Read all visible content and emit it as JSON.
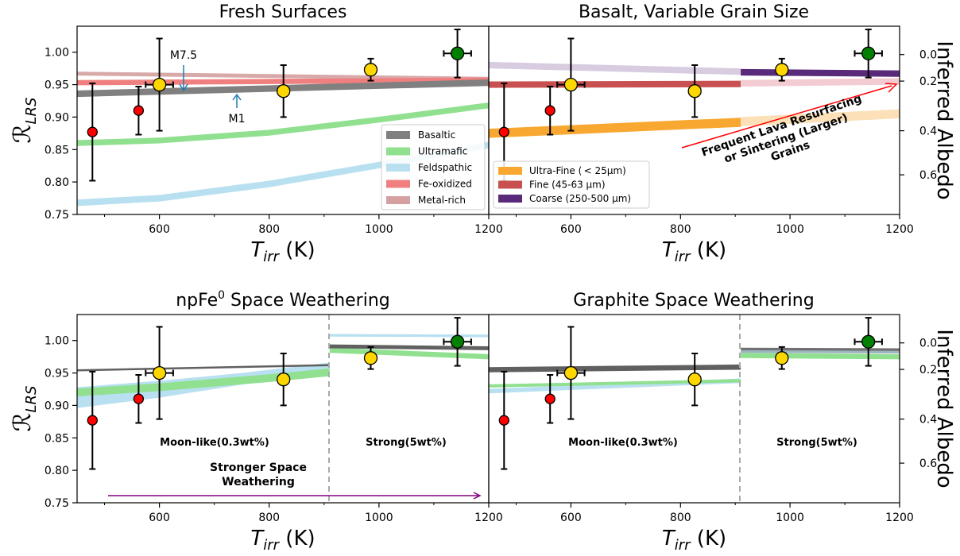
{
  "figure": {
    "xlabel_sym": "T",
    "xlabel_sub": "irr",
    "xlabel_unit": "(K)",
    "ylabel_sym": "ℛ",
    "ylabel_sub": "LRS",
    "right_ylabel": "Inferred Albedo",
    "xticks": [
      "600",
      "800",
      "1000",
      "1200"
    ],
    "yticks": [
      "0.75",
      "0.80",
      "0.85",
      "0.90",
      "0.95",
      "1.00"
    ],
    "right_ticks": [
      "0.0",
      "0.2",
      "0.4",
      "0.6"
    ]
  },
  "titles": {
    "p1": "Fresh Surfaces",
    "p2": "Basalt, Variable Grain Size",
    "p3_main": "npFe",
    "p3_sup": "0",
    "p3_rest": " Space Weathering",
    "p4": "Graphite Space Weathering"
  },
  "annotations": {
    "m75": "M7.5",
    "m1": "M1",
    "lava_l1": "Frequent Lava Resurfacing",
    "lava_l2": "or Sintering (Larger)",
    "lava_l3": "Grains",
    "moonlike": "Moon-like(0.3wt%)",
    "strong": "Strong(5wt%)",
    "stronger_l1": "Stronger Space",
    "stronger_l2": "Weathering"
  },
  "legend1": [
    {
      "label": "Basaltic",
      "color": "#808080"
    },
    {
      "label": "Ultramafic",
      "color": "#90e090"
    },
    {
      "label": "Feldspathic",
      "color": "#b8e0f0"
    },
    {
      "label": "Fe-oxidized",
      "color": "#f08080"
    },
    {
      "label": "Metal-rich",
      "color": "#d4a0a0"
    }
  ],
  "legend2": [
    {
      "label": "Ultra-Fine ( < 25μm)",
      "color": "#f8a830"
    },
    {
      "label": "Fine (45-63 μm)",
      "color": "#c85050"
    },
    {
      "label": "Coarse (250-500 μm)",
      "color": "#5a2a7a"
    }
  ],
  "chart_data": [
    {
      "type": "scatter",
      "title": "Fresh Surfaces",
      "xlabel": "T_irr (K)",
      "ylabel": "R_LRS",
      "xlim": [
        450,
        1200
      ],
      "ylim": [
        0.75,
        1.04
      ],
      "points": [
        {
          "x": 478,
          "y": 0.877,
          "yerr": 0.075,
          "xerr": 0,
          "color": "red"
        },
        {
          "x": 562,
          "y": 0.91,
          "yerr": 0.037,
          "xerr": 5,
          "color": "red"
        },
        {
          "x": 600,
          "y": 0.95,
          "yerr": 0.071,
          "xerr": 25,
          "color": "gold"
        },
        {
          "x": 826,
          "y": 0.94,
          "yerr": 0.04,
          "xerr": 10,
          "color": "gold"
        },
        {
          "x": 985,
          "y": 0.973,
          "yerr": 0.017,
          "xerr": 8,
          "color": "gold"
        },
        {
          "x": 1143,
          "y": 0.998,
          "yerr": 0.037,
          "xerr": 25,
          "color": "green"
        }
      ],
      "series": [
        {
          "name": "Basaltic",
          "x": [
            450,
            1200
          ],
          "y": [
            0.936,
            0.953
          ],
          "width": 0.01
        },
        {
          "name": "Ultramafic",
          "x": [
            450,
            600,
            800,
            1000,
            1200
          ],
          "y": [
            0.86,
            0.864,
            0.876,
            0.896,
            0.918
          ],
          "width": 0.009
        },
        {
          "name": "Feldspathic",
          "x": [
            450,
            600,
            800,
            1000,
            1200
          ],
          "y": [
            0.768,
            0.775,
            0.797,
            0.826,
            0.857
          ],
          "width": 0.01
        },
        {
          "name": "Fe-oxidized",
          "x": [
            450,
            1200
          ],
          "y": [
            0.953,
            0.957
          ],
          "width": 0.008
        },
        {
          "name": "Metal-rich",
          "x": [
            450,
            1200
          ],
          "y": [
            0.967,
            0.959
          ],
          "width": 0.006
        }
      ]
    },
    {
      "type": "scatter",
      "title": "Basalt, Variable Grain Size",
      "xlabel": "T_irr (K)",
      "right_ylabel": "Inferred Albedo",
      "xlim": [
        450,
        1200
      ],
      "ylim": [
        0.75,
        1.04
      ],
      "series": [
        {
          "name": "Ultra-Fine (< 25μm)",
          "x": [
            450,
            910
          ],
          "y": [
            0.875,
            0.892
          ],
          "x2": [
            910,
            1200
          ],
          "y2": [
            0.893,
            0.905
          ],
          "width": 0.014
        },
        {
          "name": "Fine (45-63 μm)",
          "x": [
            450,
            910
          ],
          "y": [
            0.95,
            0.951
          ],
          "x2": [
            910,
            1200
          ],
          "y2": [
            0.952,
            0.955
          ],
          "width": 0.01
        },
        {
          "name": "Coarse (250-500 μm)",
          "x": [
            450,
            910
          ],
          "y": [
            0.98,
            0.97
          ],
          "x2": [
            910,
            1200
          ],
          "y2": [
            0.969,
            0.967
          ],
          "width": 0.01
        }
      ]
    },
    {
      "type": "scatter",
      "title": "npFe0 Space Weathering",
      "xlabel": "T_irr (K)",
      "ylabel": "R_LRS",
      "xlim": [
        450,
        1200
      ],
      "ylim": [
        0.75,
        1.04
      ],
      "vline": 910
    },
    {
      "type": "scatter",
      "title": "Graphite Space Weathering",
      "xlabel": "T_irr (K)",
      "right_ylabel": "Inferred Albedo",
      "xlim": [
        450,
        1200
      ],
      "ylim": [
        0.75,
        1.04
      ],
      "vline": 910
    }
  ]
}
